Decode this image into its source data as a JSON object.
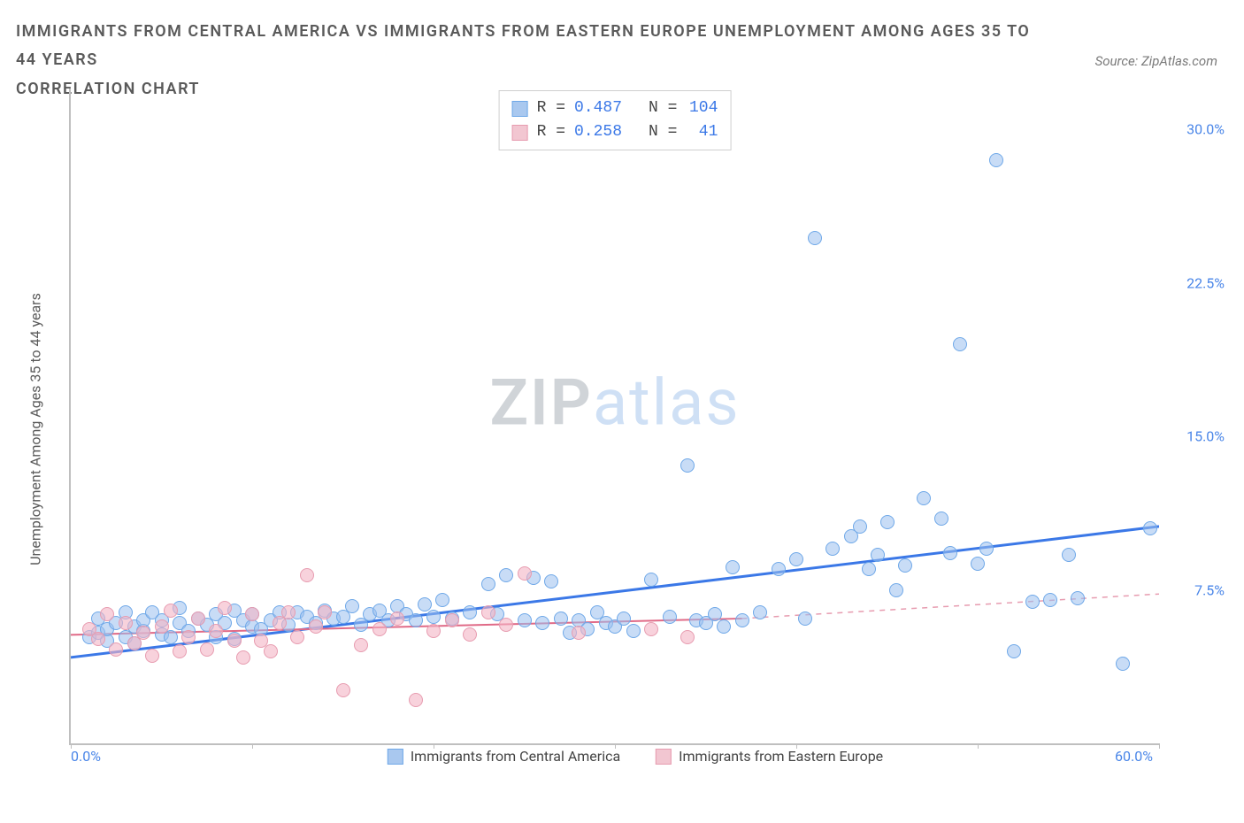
{
  "title_line1": "IMMIGRANTS FROM CENTRAL AMERICA VS IMMIGRANTS FROM EASTERN EUROPE UNEMPLOYMENT AMONG AGES 35 TO 44 YEARS",
  "title_line2": "CORRELATION CHART",
  "source_label": "Source: ZipAtlas.com",
  "y_axis_label": "Unemployment Among Ages 35 to 44 years",
  "watermark_a": "ZIP",
  "watermark_b": "atlas",
  "chart": {
    "type": "scatter",
    "xlim": [
      0,
      60
    ],
    "ylim": [
      0,
      32
    ],
    "x_ticks": [
      0,
      10,
      20,
      30,
      40,
      50,
      60
    ],
    "x_tick_labels": {
      "0": "0.0%",
      "60": "60.0%"
    },
    "y_ticks": [
      7.5,
      15.0,
      22.5,
      30.0
    ],
    "y_tick_labels": [
      "7.5%",
      "15.0%",
      "22.5%",
      "30.0%"
    ],
    "background_color": "#ffffff",
    "axis_color": "#bfbfbf",
    "label_color": "#5a5a5a",
    "tick_label_color": "#4a86e8",
    "marker_size": 16,
    "series": [
      {
        "key": "central_america",
        "label": "Immigrants from Central America",
        "color_fill": "rgba(155,192,238,0.55)",
        "color_stroke": "#6fa8e8",
        "swatch_fill": "#a9c8ef",
        "swatch_border": "#6fa8e8",
        "R": "0.487",
        "N": "104",
        "trend": {
          "x1": 0,
          "y1": 4.2,
          "x2": 60,
          "y2": 10.6,
          "color": "#3b78e7",
          "width": 3,
          "dash": "none"
        },
        "points": [
          [
            1,
            5.2
          ],
          [
            1.5,
            5.4
          ],
          [
            1.5,
            6.1
          ],
          [
            2,
            5.0
          ],
          [
            2,
            5.6
          ],
          [
            2.5,
            5.9
          ],
          [
            3,
            5.2
          ],
          [
            3,
            6.4
          ],
          [
            3.5,
            4.9
          ],
          [
            3.5,
            5.7
          ],
          [
            4,
            5.5
          ],
          [
            4,
            6.0
          ],
          [
            4.5,
            6.4
          ],
          [
            5,
            5.3
          ],
          [
            5,
            6.0
          ],
          [
            5.5,
            5.2
          ],
          [
            6,
            5.9
          ],
          [
            6,
            6.6
          ],
          [
            6.5,
            5.5
          ],
          [
            7,
            6.1
          ],
          [
            7.5,
            5.8
          ],
          [
            8,
            5.2
          ],
          [
            8,
            6.3
          ],
          [
            8.5,
            5.9
          ],
          [
            9,
            5.1
          ],
          [
            9,
            6.5
          ],
          [
            9.5,
            6.0
          ],
          [
            10,
            5.7
          ],
          [
            10,
            6.3
          ],
          [
            10.5,
            5.6
          ],
          [
            11,
            6.0
          ],
          [
            11.5,
            6.4
          ],
          [
            12,
            5.8
          ],
          [
            12.5,
            6.4
          ],
          [
            13,
            6.2
          ],
          [
            13.5,
            5.9
          ],
          [
            14,
            6.5
          ],
          [
            14.5,
            6.1
          ],
          [
            15,
            6.2
          ],
          [
            15.5,
            6.7
          ],
          [
            16,
            5.8
          ],
          [
            16.5,
            6.3
          ],
          [
            17,
            6.5
          ],
          [
            17.5,
            6.0
          ],
          [
            18,
            6.7
          ],
          [
            18.5,
            6.3
          ],
          [
            19,
            6.0
          ],
          [
            19.5,
            6.8
          ],
          [
            20,
            6.2
          ],
          [
            20.5,
            7.0
          ],
          [
            21,
            6.1
          ],
          [
            22,
            6.4
          ],
          [
            23,
            7.8
          ],
          [
            23.5,
            6.3
          ],
          [
            24,
            8.2
          ],
          [
            25,
            6.0
          ],
          [
            25.5,
            8.1
          ],
          [
            26,
            5.9
          ],
          [
            26.5,
            7.9
          ],
          [
            27,
            6.1
          ],
          [
            27.5,
            5.4
          ],
          [
            28,
            6.0
          ],
          [
            28.5,
            5.6
          ],
          [
            29,
            6.4
          ],
          [
            29.5,
            5.9
          ],
          [
            30,
            5.7
          ],
          [
            30.5,
            6.1
          ],
          [
            31,
            5.5
          ],
          [
            32,
            8.0
          ],
          [
            33,
            6.2
          ],
          [
            34,
            13.6
          ],
          [
            34.5,
            6.0
          ],
          [
            35,
            5.9
          ],
          [
            35.5,
            6.3
          ],
          [
            36,
            5.7
          ],
          [
            36.5,
            8.6
          ],
          [
            37,
            6.0
          ],
          [
            38,
            6.4
          ],
          [
            39,
            8.5
          ],
          [
            40,
            9.0
          ],
          [
            40.5,
            6.1
          ],
          [
            41,
            24.7
          ],
          [
            42,
            9.5
          ],
          [
            43,
            10.1
          ],
          [
            43.5,
            10.6
          ],
          [
            44,
            8.5
          ],
          [
            44.5,
            9.2
          ],
          [
            45,
            10.8
          ],
          [
            45.5,
            7.5
          ],
          [
            46,
            8.7
          ],
          [
            47,
            12.0
          ],
          [
            48,
            11.0
          ],
          [
            48.5,
            9.3
          ],
          [
            49,
            19.5
          ],
          [
            50,
            8.8
          ],
          [
            50.5,
            9.5
          ],
          [
            51,
            28.5
          ],
          [
            52,
            4.5
          ],
          [
            53,
            6.9
          ],
          [
            54,
            7.0
          ],
          [
            55,
            9.2
          ],
          [
            55.5,
            7.1
          ],
          [
            58,
            3.9
          ],
          [
            59.5,
            10.5
          ]
        ]
      },
      {
        "key": "eastern_europe",
        "label": "Immigrants from Eastern Europe",
        "color_fill": "rgba(244,180,196,0.6)",
        "color_stroke": "#e79cb0",
        "swatch_fill": "#f2c6d1",
        "swatch_border": "#e79cb0",
        "R": "0.258",
        "N": "41",
        "trend_solid": {
          "x1": 0,
          "y1": 5.3,
          "x2": 37,
          "y2": 6.1,
          "color": "#e06a87",
          "width": 2
        },
        "trend_dash": {
          "x1": 37,
          "y1": 6.1,
          "x2": 60,
          "y2": 7.3,
          "color": "#e79cb0",
          "width": 1.5
        },
        "points": [
          [
            1,
            5.6
          ],
          [
            1.5,
            5.1
          ],
          [
            2,
            6.3
          ],
          [
            2.5,
            4.6
          ],
          [
            3,
            5.9
          ],
          [
            3.5,
            4.9
          ],
          [
            4,
            5.4
          ],
          [
            4.5,
            4.3
          ],
          [
            5,
            5.7
          ],
          [
            5.5,
            6.5
          ],
          [
            6,
            4.5
          ],
          [
            6.5,
            5.2
          ],
          [
            7,
            6.1
          ],
          [
            7.5,
            4.6
          ],
          [
            8,
            5.5
          ],
          [
            8.5,
            6.6
          ],
          [
            9,
            5.0
          ],
          [
            9.5,
            4.2
          ],
          [
            10,
            6.3
          ],
          [
            10.5,
            5.0
          ],
          [
            11,
            4.5
          ],
          [
            11.5,
            5.9
          ],
          [
            12,
            6.4
          ],
          [
            12.5,
            5.2
          ],
          [
            13,
            8.2
          ],
          [
            13.5,
            5.7
          ],
          [
            14,
            6.4
          ],
          [
            15,
            2.6
          ],
          [
            16,
            4.8
          ],
          [
            17,
            5.6
          ],
          [
            18,
            6.1
          ],
          [
            19,
            2.1
          ],
          [
            20,
            5.5
          ],
          [
            21,
            6.0
          ],
          [
            22,
            5.3
          ],
          [
            23,
            6.4
          ],
          [
            24,
            5.8
          ],
          [
            25,
            8.3
          ],
          [
            28,
            5.4
          ],
          [
            32,
            5.6
          ],
          [
            34,
            5.2
          ]
        ]
      }
    ]
  },
  "stats_box": {
    "rows": [
      {
        "swatch_fill": "#a9c8ef",
        "swatch_border": "#6fa8e8",
        "r_label": "R =",
        "r_val": "0.487",
        "n_label": "N =",
        "n_val": "104"
      },
      {
        "swatch_fill": "#f2c6d1",
        "swatch_border": "#e79cb0",
        "r_label": "R =",
        "r_val": "0.258",
        "n_label": "N =",
        "n_val": " 41"
      }
    ]
  },
  "bottom_legend": [
    {
      "swatch_fill": "#a9c8ef",
      "swatch_border": "#6fa8e8",
      "label": "Immigrants from Central America"
    },
    {
      "swatch_fill": "#f2c6d1",
      "swatch_border": "#e79cb0",
      "label": "Immigrants from Eastern Europe"
    }
  ]
}
